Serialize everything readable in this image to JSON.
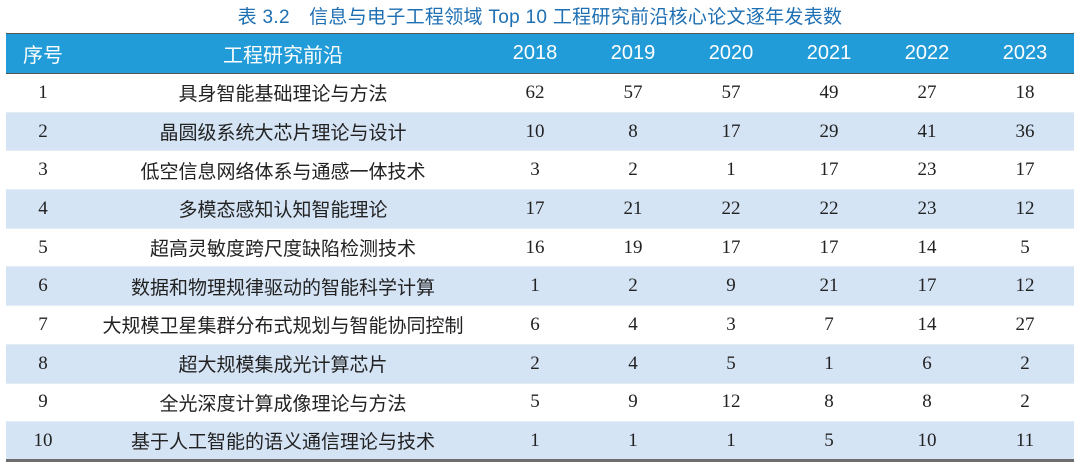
{
  "title": "表 3.2　信息与电子工程领域 Top 10 工程研究前沿核心论文逐年发表数",
  "header": {
    "index": "序号",
    "name": "工程研究前沿",
    "years": [
      "2018",
      "2019",
      "2020",
      "2021",
      "2022",
      "2023"
    ]
  },
  "rows": [
    {
      "index": "1",
      "name": "具身智能基础理论与方法",
      "values": [
        "62",
        "57",
        "57",
        "49",
        "27",
        "18"
      ]
    },
    {
      "index": "2",
      "name": "晶圆级系统大芯片理论与设计",
      "values": [
        "10",
        "8",
        "17",
        "29",
        "41",
        "36"
      ]
    },
    {
      "index": "3",
      "name": "低空信息网络体系与通感一体技术",
      "values": [
        "3",
        "2",
        "1",
        "17",
        "23",
        "17"
      ]
    },
    {
      "index": "4",
      "name": "多模态感知认知智能理论",
      "values": [
        "17",
        "21",
        "22",
        "22",
        "23",
        "12"
      ]
    },
    {
      "index": "5",
      "name": "超高灵敏度跨尺度缺陷检测技术",
      "values": [
        "16",
        "19",
        "17",
        "17",
        "14",
        "5"
      ]
    },
    {
      "index": "6",
      "name": "数据和物理规律驱动的智能科学计算",
      "values": [
        "1",
        "2",
        "9",
        "21",
        "17",
        "12"
      ]
    },
    {
      "index": "7",
      "name": "大规模卫星集群分布式规划与智能协同控制",
      "values": [
        "6",
        "4",
        "3",
        "7",
        "14",
        "27"
      ]
    },
    {
      "index": "8",
      "name": "超大规模集成光计算芯片",
      "values": [
        "2",
        "4",
        "5",
        "1",
        "6",
        "2"
      ]
    },
    {
      "index": "9",
      "name": "全光深度计算成像理论与方法",
      "values": [
        "5",
        "9",
        "12",
        "8",
        "8",
        "2"
      ]
    },
    {
      "index": "10",
      "name": "基于人工智能的语义通信理论与技术",
      "values": [
        "1",
        "1",
        "1",
        "5",
        "10",
        "11"
      ]
    }
  ],
  "colors": {
    "title": "#1e6fb3",
    "header_bg": "#229cd8",
    "header_text": "#ffffff",
    "stripe": "#d5e4f5",
    "bottom_rule": "#6d6d6d"
  }
}
